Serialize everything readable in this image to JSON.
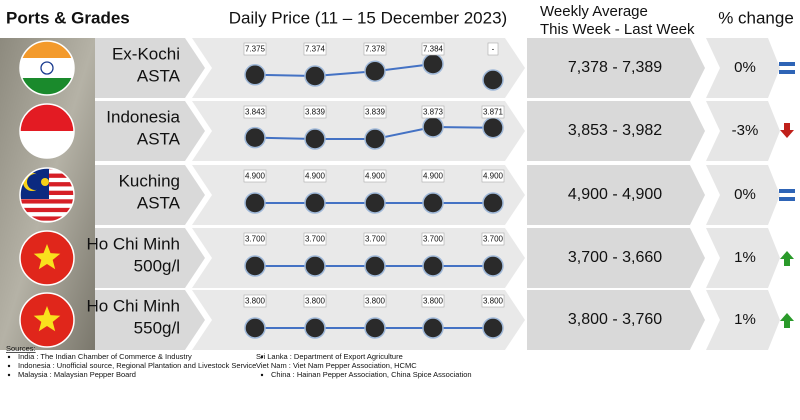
{
  "header": {
    "ports": "Ports & Grades",
    "daily": "Daily Price (11 – 15 December 2023)",
    "weekly": [
      "Weekly Average",
      "This Week - Last Week"
    ],
    "change": "% change"
  },
  "rows": [
    {
      "name": [
        "Ex-Kochi",
        "ASTA"
      ],
      "prices": [
        7.375,
        7.374,
        7.378,
        7.384,
        null
      ],
      "price_labels": [
        "7.375",
        "7.374",
        "7.378",
        "7.384",
        "-"
      ],
      "weekly": "7,378 - 7,389",
      "change": "0%",
      "trend": "equal"
    },
    {
      "name": [
        "Indonesia",
        "ASTA"
      ],
      "prices": [
        3.843,
        3.839,
        3.839,
        3.873,
        3.871
      ],
      "price_labels": [
        "3.843",
        "3.839",
        "3.839",
        "3.873",
        "3.871"
      ],
      "weekly": "3,853 - 3,982",
      "change": "-3%",
      "trend": "down"
    },
    {
      "name": [
        "Kuching",
        "ASTA"
      ],
      "prices": [
        4.9,
        4.9,
        4.9,
        4.9,
        4.9
      ],
      "price_labels": [
        "4.900",
        "4.900",
        "4.900",
        "4.900",
        "4.900"
      ],
      "weekly": "4,900 - 4,900",
      "change": "0%",
      "trend": "equal"
    },
    {
      "name": [
        "Ho Chi Minh",
        "500g/l"
      ],
      "prices": [
        3.7,
        3.7,
        3.7,
        3.7,
        3.7
      ],
      "price_labels": [
        "3.700",
        "3.700",
        "3.700",
        "3.700",
        "3.700"
      ],
      "weekly": "3,700 - 3,660",
      "change": "1%",
      "trend": "up"
    },
    {
      "name": [
        "Ho Chi Minh",
        "550g/l"
      ],
      "prices": [
        3.8,
        3.8,
        3.8,
        3.8,
        3.8
      ],
      "price_labels": [
        "3.800",
        "3.800",
        "3.800",
        "3.800",
        "3.800"
      ],
      "weekly": "3,800 - 3,760",
      "change": "1%",
      "trend": "up"
    }
  ],
  "sources": {
    "title": "Sources:",
    "left": [
      "India : The Indian Chamber of Commerce & Industry",
      "Indonesia : Unofficial source, Regional Plantation and Livestock Service",
      "Malaysia : Malaysian Pepper Board"
    ],
    "right": [
      "Sri Lanka : Department of Export Agriculture",
      "Viet Nam : Viet Nam Pepper Association, HCMC",
      "China : Hainan Pepper Association, China Spice Association"
    ]
  }
}
